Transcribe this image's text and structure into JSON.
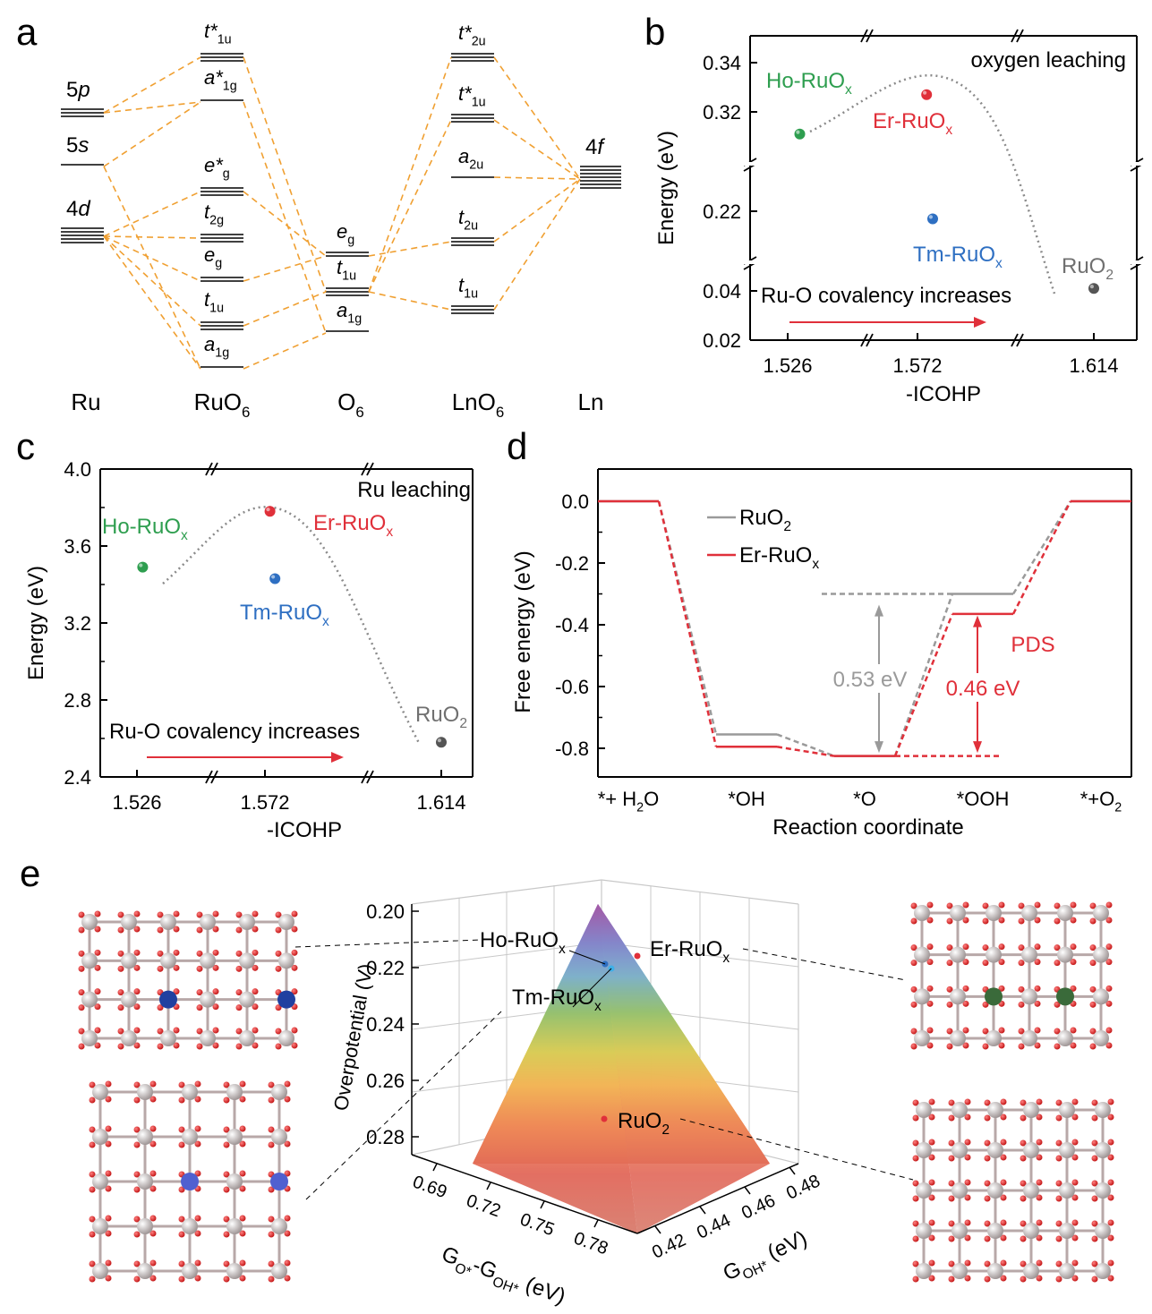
{
  "panel_letters": [
    "a",
    "b",
    "c",
    "d",
    "e"
  ],
  "colors": {
    "ho": "#2e9e4f",
    "er": "#e0303a",
    "tm": "#2e6fc2",
    "ruo2": "#707070",
    "orange": "#f0a032",
    "axis": "#000000",
    "dotted": "#8a8a8a",
    "red_line": "#e0303a",
    "gray_line": "#9a9a9a"
  },
  "panel_a": {
    "column_labels": [
      {
        "main": "Ru",
        "sub": ""
      },
      {
        "main": "RuO",
        "sub": "6"
      },
      {
        "main": "O",
        "sub": "6"
      },
      {
        "main": "LnO",
        "sub": "6"
      },
      {
        "main": "Ln",
        "sub": ""
      }
    ],
    "ru_levels": [
      {
        "main": "5",
        "it": "p"
      },
      {
        "main": "5",
        "it": "s"
      },
      {
        "main": "4",
        "it": "d"
      }
    ],
    "ruo6_levels": [
      {
        "main": "t*",
        "sub": "1u"
      },
      {
        "main": "a*",
        "sub": "1g"
      },
      {
        "main": "e*",
        "sub": "g"
      },
      {
        "main": "t",
        "sub": "2g"
      },
      {
        "main": "e",
        "sub": "g"
      },
      {
        "main": "t",
        "sub": "1u"
      },
      {
        "main": "a",
        "sub": "1g"
      }
    ],
    "o6_levels": [
      {
        "main": "e",
        "sub": "g"
      },
      {
        "main": "t",
        "sub": "1u"
      },
      {
        "main": "a",
        "sub": "1g"
      }
    ],
    "lno6_levels": [
      {
        "main": "t*",
        "sub": "2u"
      },
      {
        "main": "t*",
        "sub": "1u"
      },
      {
        "main": "a",
        "sub": "2u"
      },
      {
        "main": "t",
        "sub": "2u"
      },
      {
        "main": "t",
        "sub": "1u"
      }
    ],
    "ln_level": {
      "main": "4",
      "it": "f"
    }
  },
  "chart_data": [
    {
      "panel": "b",
      "type": "scatter",
      "title": "oxygen leaching",
      "xlabel": "-ICOHP",
      "ylabel": "Energy (eV)",
      "xticks": [
        "1.526",
        "1.572",
        "1.614"
      ],
      "yticks": [
        "0.02",
        "0.04",
        "0.22",
        "0.32",
        "0.34"
      ],
      "axis_breaks": true,
      "points": [
        {
          "name": "Ho-RuO",
          "sub": "x",
          "x": 1.535,
          "y": 0.311,
          "color": "#2e9e4f"
        },
        {
          "name": "Er-RuO",
          "sub": "x",
          "x": 1.578,
          "y": 0.327,
          "color": "#e0303a"
        },
        {
          "name": "Tm-RuO",
          "sub": "x",
          "x": 1.582,
          "y": 0.21,
          "color": "#2e6fc2"
        },
        {
          "name": "RuO",
          "sub": "2",
          "x": 1.614,
          "y": 0.041,
          "color": "#555555"
        }
      ],
      "annotation": "Ru-O covalency increases",
      "legend_position": "none"
    },
    {
      "panel": "c",
      "type": "scatter",
      "title": "Ru leaching",
      "xlabel": "-ICOHP",
      "ylabel": "Energy (eV)",
      "xticks": [
        "1.526",
        "1.572",
        "1.614"
      ],
      "yticks": [
        "2.4",
        "2.8",
        "3.2",
        "3.6",
        "4.0"
      ],
      "ylim": [
        2.4,
        4.0
      ],
      "axis_breaks": true,
      "points": [
        {
          "name": "Ho-RuO",
          "sub": "x",
          "x": 1.53,
          "y": 3.49,
          "color": "#2e9e4f"
        },
        {
          "name": "Er-RuO",
          "sub": "x",
          "x": 1.576,
          "y": 3.78,
          "color": "#e0303a"
        },
        {
          "name": "Tm-RuO",
          "sub": "x",
          "x": 1.58,
          "y": 3.43,
          "color": "#2e6fc2"
        },
        {
          "name": "RuO",
          "sub": "2",
          "x": 1.614,
          "y": 2.58,
          "color": "#555555"
        }
      ],
      "annotation": "Ru-O covalency increases",
      "legend_position": "none"
    },
    {
      "panel": "d",
      "type": "line",
      "xlabel": "Reaction coordinate",
      "ylabel": "Free energy (eV)",
      "ylim": [
        -0.9,
        0.1
      ],
      "yticks": [
        "0.0",
        "-0.2",
        "-0.4",
        "-0.6",
        "-0.8"
      ],
      "categories": [
        {
          "main": "*+ H",
          "sub": "2",
          "tail": "O"
        },
        {
          "main": "*OH",
          "sub": "",
          "tail": ""
        },
        {
          "main": "*O",
          "sub": "",
          "tail": ""
        },
        {
          "main": "*OOH",
          "sub": "",
          "tail": ""
        },
        {
          "main": "*+O",
          "sub": "2",
          "tail": ""
        }
      ],
      "series": [
        {
          "name": "RuO",
          "sub": "2",
          "color": "#9a9a9a",
          "values": [
            0.0,
            -0.755,
            -0.825,
            -0.3,
            0.0
          ]
        },
        {
          "name": "Er-RuO",
          "sub": "x",
          "color": "#e0303a",
          "values": [
            0.0,
            -0.795,
            -0.825,
            -0.365,
            0.0
          ]
        }
      ],
      "annotations": [
        {
          "text": "0.53 eV",
          "color": "#9a9a9a"
        },
        {
          "text": "0.46 eV",
          "color": "#e0303a"
        },
        {
          "text": "PDS",
          "color": "#e0303a"
        }
      ],
      "legend_position": "top-center"
    },
    {
      "panel": "e",
      "type": "surface",
      "zlabel": "Overpotential (V)",
      "zticks": [
        "0.20",
        "0.22",
        "0.24",
        "0.26",
        "0.28"
      ],
      "xlabel": {
        "main": "G",
        "sub1": "O*",
        "mid": "-G",
        "sub2": "OH*",
        "tail": " (eV)"
      },
      "xticks": [
        "0.69",
        "0.72",
        "0.75",
        "0.78"
      ],
      "ylabel": {
        "main": "G",
        "sub": "OH*",
        "tail": " (eV)"
      },
      "yticks": [
        "0.42",
        "0.44",
        "0.46",
        "0.48"
      ],
      "points": [
        {
          "name": "Ho-RuO",
          "sub": "x",
          "z": 0.215
        },
        {
          "name": "Er-RuO",
          "sub": "x",
          "z": 0.214
        },
        {
          "name": "Tm-RuO",
          "sub": "x",
          "z": 0.216
        },
        {
          "name": "RuO",
          "sub": "2",
          "z": 0.262
        }
      ]
    }
  ]
}
